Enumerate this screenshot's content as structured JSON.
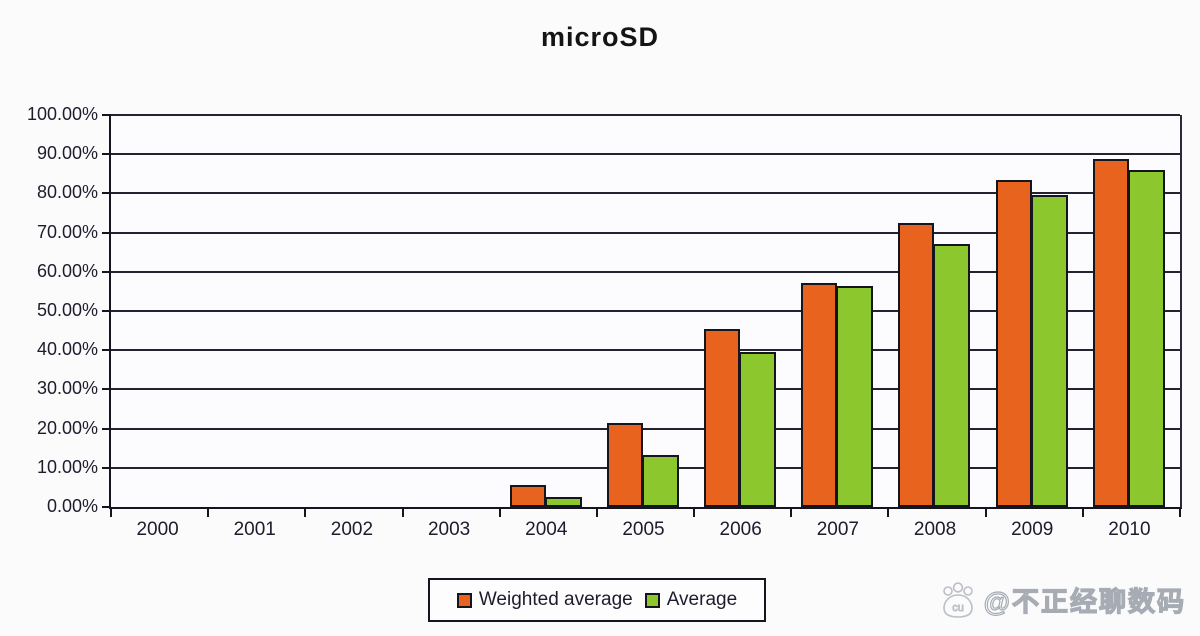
{
  "title": "microSD",
  "legend": {
    "items": [
      {
        "label": "Weighted average",
        "color": "#e8641e"
      },
      {
        "label": "Average",
        "color": "#8cc82d"
      }
    ]
  },
  "watermark": {
    "icon": "paw-icon",
    "icon_text": "cu",
    "text": "@不正经聊数码"
  },
  "chart_data": {
    "type": "bar",
    "title": "microSD",
    "categories": [
      "2000",
      "2001",
      "2002",
      "2003",
      "2004",
      "2005",
      "2006",
      "2007",
      "2008",
      "2009",
      "2010"
    ],
    "series": [
      {
        "name": "Weighted average",
        "color": "#e8641e",
        "values": [
          0,
          0,
          0,
          0,
          5.6,
          21.5,
          45.3,
          57.1,
          72.4,
          83.4,
          88.9
        ]
      },
      {
        "name": "Average",
        "color": "#8cc82d",
        "values": [
          0,
          0,
          0,
          0,
          2.5,
          13.3,
          39.5,
          56.4,
          67.2,
          79.6,
          86.0
        ]
      }
    ],
    "xlabel": "",
    "ylabel": "",
    "ylim": [
      0,
      100
    ],
    "ytick_step": 10,
    "ytick_labels": [
      "0.00%",
      "10.00%",
      "20.00%",
      "30.00%",
      "40.00%",
      "50.00%",
      "60.00%",
      "70.00%",
      "80.00%",
      "90.00%",
      "100.00%"
    ],
    "grid": "horizontal-major",
    "legend_position": "bottom-center",
    "bar_border_color": "#15151f",
    "axis_color": "#15151f",
    "plot_background": "#fcfcfe"
  }
}
